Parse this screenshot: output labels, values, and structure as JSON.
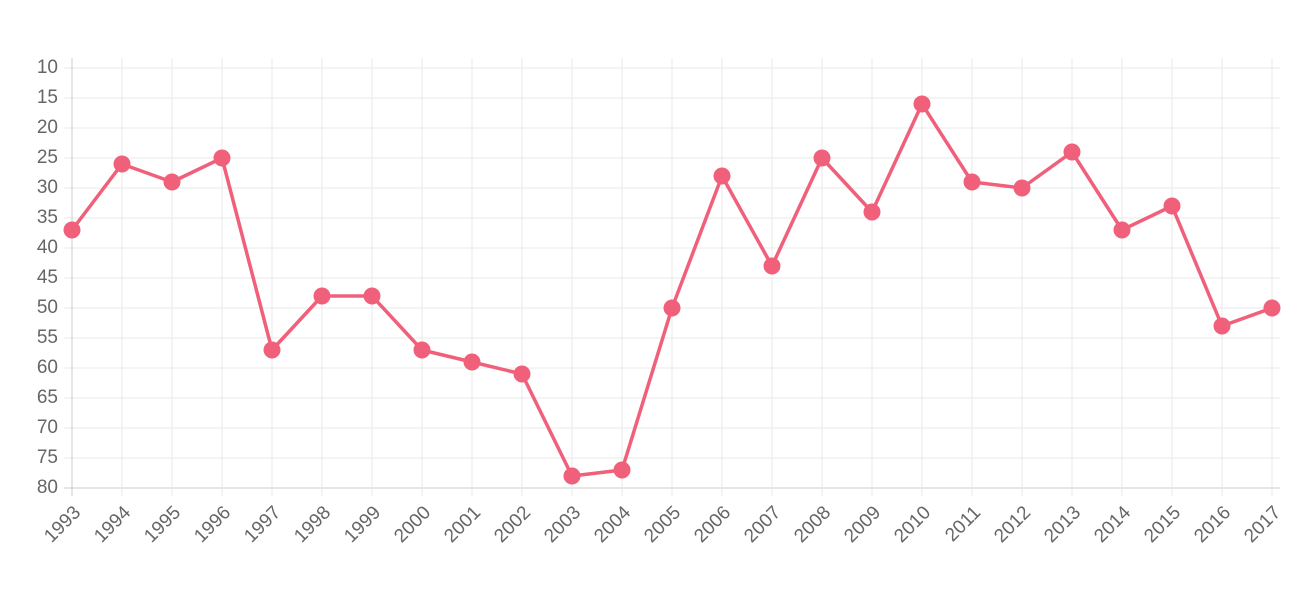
{
  "chart_data": {
    "type": "line",
    "categories": [
      "1993",
      "1994",
      "1995",
      "1996",
      "1997",
      "1998",
      "1999",
      "2000",
      "2001",
      "2002",
      "2003",
      "2004",
      "2005",
      "2006",
      "2007",
      "2008",
      "2009",
      "2010",
      "2011",
      "2012",
      "2013",
      "2014",
      "2015",
      "2016",
      "2017"
    ],
    "series": [
      {
        "color": "#f0607a",
        "values": [
          37,
          26,
          29,
          25,
          57,
          48,
          48,
          57,
          59,
          61,
          78,
          77,
          50,
          28,
          43,
          25,
          34,
          16,
          29,
          30,
          24,
          37,
          33,
          53,
          50
        ]
      }
    ],
    "ylim": [
      10,
      80
    ],
    "yticks": [
      10,
      15,
      20,
      25,
      30,
      35,
      40,
      45,
      50,
      55,
      60,
      65,
      70,
      75,
      80
    ],
    "y_reversed": true,
    "grid": true
  }
}
